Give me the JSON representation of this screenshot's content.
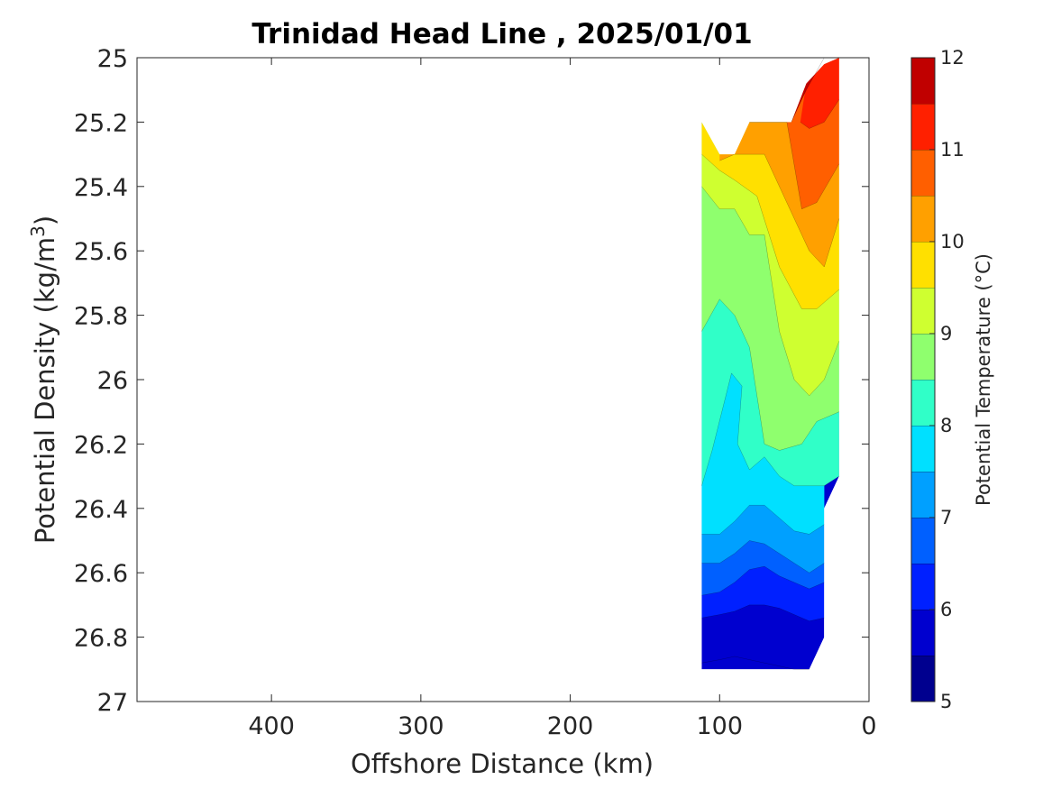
{
  "chart_data": {
    "type": "contourf",
    "title": "Trinidad Head Line , 2025/01/01",
    "xlabel": "Offshore Distance (km)",
    "ylabel_main": "Potential Density (kg/m",
    "ylabel_sup": "3",
    "ylabel_end": ")",
    "xlim": [
      490,
      0
    ],
    "x_reversed": true,
    "ylim": [
      25,
      27
    ],
    "y_reversed": true,
    "xticks": [
      400,
      300,
      200,
      100,
      0
    ],
    "xtick_labels": [
      "400",
      "300",
      "200",
      "100",
      "0"
    ],
    "yticks": [
      25,
      25.2,
      25.4,
      25.6,
      25.8,
      26,
      26.2,
      26.4,
      26.6,
      26.8,
      27
    ],
    "ytick_labels": [
      "25",
      "25.2",
      "25.4",
      "25.6",
      "25.8",
      "26",
      "26.2",
      "26.4",
      "26.6",
      "26.8",
      "27"
    ],
    "colorbar": {
      "label": "Potential Temperature (°C)",
      "levels": [
        5,
        5.5,
        6,
        6.5,
        7,
        7.5,
        8,
        8.5,
        9,
        9.5,
        10,
        10.5,
        11,
        11.5,
        12
      ],
      "colors": [
        "#00008f",
        "#0000cf",
        "#0020ff",
        "#0060ff",
        "#00a0ff",
        "#00e0ff",
        "#30ffc8",
        "#8fff6e",
        "#cfff30",
        "#ffe000",
        "#ffa000",
        "#ff5f00",
        "#ff2000",
        "#c00000"
      ],
      "tick_values": [
        5,
        6,
        7,
        8,
        9,
        10,
        11,
        12
      ],
      "tick_labels": [
        "5",
        "6",
        "7",
        "8",
        "9",
        "10",
        "11",
        "12"
      ]
    },
    "contour_fill": {
      "levels_ascending": [
        5.5,
        6,
        6.5,
        7,
        7.5,
        8,
        8.5,
        9,
        9.5,
        10,
        10.5,
        11,
        11.5
      ],
      "colors": [
        "#0000cf",
        "#0020ff",
        "#0060ff",
        "#00a0ff",
        "#00e0ff",
        "#30ffc8",
        "#8fff6e",
        "#cfff30",
        "#ffe000",
        "#ffa000",
        "#ff5f00",
        "#ff2000",
        "#c00000"
      ],
      "domain_outline": [
        [
          112,
          25.2
        ],
        [
          100,
          25.3
        ],
        [
          80,
          25.3
        ],
        [
          75,
          25.2
        ],
        [
          52,
          25.2
        ],
        [
          20,
          25.0
        ],
        [
          20,
          26.3
        ],
        [
          30,
          26.4
        ],
        [
          30,
          26.8
        ],
        [
          40,
          26.9
        ],
        [
          112,
          26.9
        ]
      ],
      "top_boundary": [
        [
          112,
          25.2
        ],
        [
          100,
          25.3
        ],
        [
          90,
          25.3
        ],
        [
          80,
          25.2
        ],
        [
          75,
          25.2
        ],
        [
          52,
          25.2
        ],
        [
          42,
          25.08
        ],
        [
          30,
          25.02
        ],
        [
          20,
          25.0
        ]
      ],
      "bottom_boundary": [
        [
          112,
          26.9
        ],
        [
          90,
          26.9
        ],
        [
          70,
          26.9
        ],
        [
          40,
          26.9
        ],
        [
          30,
          26.8
        ],
        [
          30,
          26.4
        ],
        [
          20,
          26.3
        ]
      ],
      "isolines": [
        {
          "level": 11.5,
          "points": [
            [
              52,
              25.2
            ],
            [
              42,
              25.1
            ],
            [
              30,
              25.0
            ],
            [
              20,
              25.0
            ]
          ]
        },
        {
          "level": 11,
          "points": [
            [
              46,
              25.2
            ],
            [
              40,
              25.22
            ],
            [
              30,
              25.2
            ],
            [
              20,
              25.13
            ]
          ]
        },
        {
          "level": 10.5,
          "points": [
            [
              80,
              25.2
            ],
            [
              72,
              25.2
            ],
            [
              55,
              25.2
            ],
            [
              45,
              25.47
            ],
            [
              35,
              25.45
            ],
            [
              20,
              25.33
            ]
          ]
        },
        {
          "level": 10,
          "points": [
            [
              100,
              25.32
            ],
            [
              90,
              25.3
            ],
            [
              70,
              25.3
            ],
            [
              50,
              25.5
            ],
            [
              40,
              25.6
            ],
            [
              30,
              25.65
            ],
            [
              20,
              25.5
            ]
          ]
        },
        {
          "level": 9.5,
          "points": [
            [
              112,
              25.3
            ],
            [
              100,
              25.35
            ],
            [
              90,
              25.38
            ],
            [
              75,
              25.43
            ],
            [
              60,
              25.65
            ],
            [
              45,
              25.78
            ],
            [
              35,
              25.78
            ],
            [
              20,
              25.72
            ]
          ]
        },
        {
          "level": 9,
          "points": [
            [
              112,
              25.4
            ],
            [
              100,
              25.47
            ],
            [
              90,
              25.47
            ],
            [
              80,
              25.55
            ],
            [
              70,
              25.55
            ],
            [
              60,
              25.85
            ],
            [
              50,
              26.0
            ],
            [
              40,
              26.05
            ],
            [
              30,
              26.0
            ],
            [
              20,
              25.88
            ]
          ]
        },
        {
          "level": 8.5,
          "points": [
            [
              112,
              25.85
            ],
            [
              100,
              25.75
            ],
            [
              90,
              25.8
            ],
            [
              80,
              25.9
            ],
            [
              70,
              26.2
            ],
            [
              60,
              26.22
            ],
            [
              45,
              26.2
            ],
            [
              35,
              26.13
            ],
            [
              20,
              26.1
            ]
          ]
        },
        {
          "level": 8,
          "points": [
            [
              112,
              26.33
            ],
            [
              105,
              26.22
            ],
            [
              92,
              25.98
            ],
            [
              85,
              26.02
            ],
            [
              88,
              26.2
            ],
            [
              80,
              26.28
            ],
            [
              70,
              26.24
            ],
            [
              60,
              26.3
            ],
            [
              50,
              26.33
            ],
            [
              40,
              26.33
            ],
            [
              30,
              26.33
            ],
            [
              20,
              26.3
            ]
          ]
        },
        {
          "level": 7.5,
          "points": [
            [
              112,
              26.48
            ],
            [
              100,
              26.48
            ],
            [
              90,
              26.44
            ],
            [
              80,
              26.39
            ],
            [
              70,
              26.39
            ],
            [
              60,
              26.43
            ],
            [
              50,
              26.47
            ],
            [
              40,
              26.48
            ],
            [
              30,
              26.45
            ]
          ]
        },
        {
          "level": 7,
          "points": [
            [
              112,
              26.57
            ],
            [
              100,
              26.57
            ],
            [
              90,
              26.54
            ],
            [
              80,
              26.5
            ],
            [
              70,
              26.51
            ],
            [
              60,
              26.54
            ],
            [
              50,
              26.57
            ],
            [
              40,
              26.6
            ],
            [
              30,
              26.57
            ]
          ]
        },
        {
          "level": 6.5,
          "points": [
            [
              112,
              26.67
            ],
            [
              100,
              26.66
            ],
            [
              90,
              26.63
            ],
            [
              80,
              26.59
            ],
            [
              70,
              26.58
            ],
            [
              60,
              26.61
            ],
            [
              50,
              26.63
            ],
            [
              40,
              26.65
            ],
            [
              30,
              26.63
            ]
          ]
        },
        {
          "level": 6,
          "points": [
            [
              112,
              26.74
            ],
            [
              100,
              26.73
            ],
            [
              90,
              26.72
            ],
            [
              80,
              26.7
            ],
            [
              70,
              26.7
            ],
            [
              60,
              26.71
            ],
            [
              50,
              26.73
            ],
            [
              40,
              26.75
            ],
            [
              30,
              26.74
            ]
          ]
        },
        {
          "level": 5.5,
          "points": [
            [
              112,
              26.88
            ],
            [
              100,
              26.87
            ],
            [
              90,
              26.86
            ],
            [
              80,
              26.87
            ],
            [
              70,
              26.88
            ],
            [
              60,
              26.89
            ],
            [
              50,
              26.9
            ],
            [
              40,
              26.9
            ]
          ]
        }
      ]
    }
  }
}
